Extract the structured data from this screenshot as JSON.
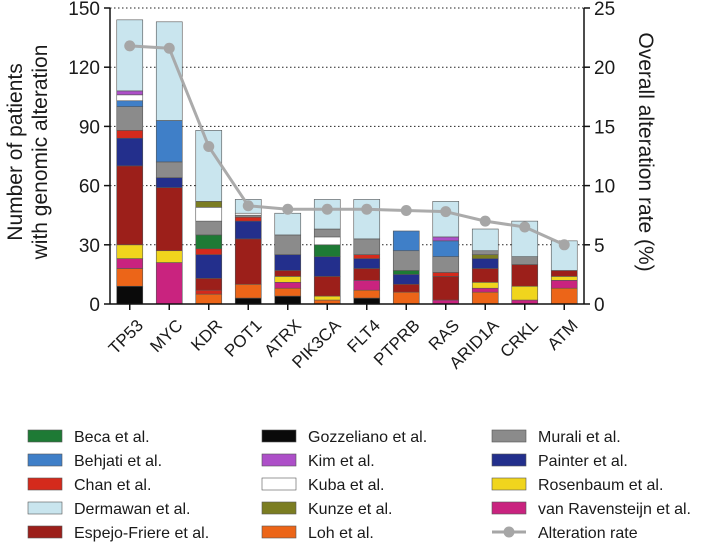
{
  "chart_data": {
    "type": "bar",
    "subtype": "stacked-bar-with-line",
    "categories": [
      "TP53",
      "MYC",
      "KDR",
      "POT1",
      "ATRX",
      "PIK3CA",
      "FLT4",
      "PTPRB",
      "RAS",
      "ARID1A",
      "CRKL",
      "ATM"
    ],
    "ylabel_left": [
      "Number of patients",
      "with genomic alteration"
    ],
    "ylabel_right": "Overall alteration rate (%)",
    "ylim_left": [
      0,
      150
    ],
    "yticks_left": [
      0,
      30,
      60,
      90,
      120,
      150
    ],
    "ylim_right": [
      0,
      25
    ],
    "yticks_right": [
      0,
      5,
      10,
      15,
      20,
      25
    ],
    "grid": "horizontal-dotted",
    "legend_position": "bottom",
    "colors": {
      "Beca et al.": "#1e7a35",
      "Behjati et al.": "#3f7fc8",
      "Chan et al.": "#d42a1c",
      "Dermawan et al.": "#c9e5ee",
      "Espejo-Friere et al.": "#9c1f1a",
      "Gozzeliano et al.": "#0a0a0a",
      "Kim et al.": "#ad4fc8",
      "Kuba et al.": "#ffffff",
      "Kunze et al.": "#7b7d22",
      "Loh et al.": "#ec6518",
      "Murali et al.": "#8b8b8b",
      "Painter et al.": "#232f8c",
      "Rosenbaum et al.": "#f0d51d",
      "van Ravensteijn et al.": "#c9237f",
      "line": "#a6a6a6"
    },
    "legend": [
      [
        "Beca et al.",
        "Behjati et al.",
        "Chan et al.",
        "Dermawan et al.",
        "Espejo-Friere et al."
      ],
      [
        "Gozzeliano et al.",
        "Kim et al.",
        "Kuba et al.",
        "Kunze et al.",
        "Loh et al."
      ],
      [
        "Murali et al.",
        "Painter et al.",
        "Rosenbaum et al.",
        "van Ravensteijn et al.",
        "Alteration rate"
      ]
    ],
    "stacks": [
      [
        [
          "Gozzeliano et al.",
          9
        ],
        [
          "Loh et al.",
          9
        ],
        [
          "van Ravensteijn et al.",
          5
        ],
        [
          "Rosenbaum et al.",
          7
        ],
        [
          "Espejo-Friere et al.",
          40
        ],
        [
          "Painter et al.",
          14
        ],
        [
          "Chan et al.",
          4
        ],
        [
          "Murali et al.",
          12
        ],
        [
          "Behjati et al.",
          3
        ],
        [
          "Kuba et al.",
          3
        ],
        [
          "Kim et al.",
          2
        ],
        [
          "Dermawan et al.",
          36
        ]
      ],
      [
        [
          "van Ravensteijn et al.",
          21
        ],
        [
          "Rosenbaum et al.",
          6
        ],
        [
          "Espejo-Friere et al.",
          32
        ],
        [
          "Painter et al.",
          5
        ],
        [
          "Murali et al.",
          8
        ],
        [
          "Behjati et al.",
          21
        ],
        [
          "Dermawan et al.",
          50
        ]
      ],
      [
        [
          "Loh et al.",
          5
        ],
        [
          "Chan et al.",
          2
        ],
        [
          "Espejo-Friere et al.",
          6
        ],
        [
          "Painter et al.",
          12
        ],
        [
          "Chan et al.",
          3
        ],
        [
          "Beca et al.",
          7
        ],
        [
          "Murali et al.",
          7
        ],
        [
          "Kuba et al.",
          7
        ],
        [
          "Kunze et al.",
          3
        ],
        [
          "Dermawan et al.",
          36
        ]
      ],
      [
        [
          "Gozzeliano et al.",
          3
        ],
        [
          "Loh et al.",
          7
        ],
        [
          "Espejo-Friere et al.",
          23
        ],
        [
          "Painter et al.",
          9
        ],
        [
          "Chan et al.",
          2
        ],
        [
          "Murali et al.",
          1
        ],
        [
          "Kuba et al.",
          1
        ],
        [
          "Dermawan et al.",
          7
        ]
      ],
      [
        [
          "Gozzeliano et al.",
          4
        ],
        [
          "Loh et al.",
          4
        ],
        [
          "van Ravensteijn et al.",
          3
        ],
        [
          "Rosenbaum et al.",
          3
        ],
        [
          "Espejo-Friere et al.",
          3
        ],
        [
          "Painter et al.",
          8
        ],
        [
          "Murali et al.",
          10
        ],
        [
          "Dermawan et al.",
          11
        ]
      ],
      [
        [
          "Loh et al.",
          2
        ],
        [
          "Rosenbaum et al.",
          2
        ],
        [
          "Espejo-Friere et al.",
          10
        ],
        [
          "Painter et al.",
          10
        ],
        [
          "Beca et al.",
          6
        ],
        [
          "Kuba et al.",
          4
        ],
        [
          "Murali et al.",
          4
        ],
        [
          "Dermawan et al.",
          15
        ]
      ],
      [
        [
          "Gozzeliano et al.",
          3
        ],
        [
          "Loh et al.",
          4
        ],
        [
          "van Ravensteijn et al.",
          5
        ],
        [
          "Espejo-Friere et al.",
          6
        ],
        [
          "Painter et al.",
          5
        ],
        [
          "Chan et al.",
          2
        ],
        [
          "Murali et al.",
          8
        ],
        [
          "Dermawan et al.",
          20
        ]
      ],
      [
        [
          "Loh et al.",
          6
        ],
        [
          "Espejo-Friere et al.",
          4
        ],
        [
          "Painter et al.",
          5
        ],
        [
          "Beca et al.",
          2
        ],
        [
          "Murali et al.",
          10
        ],
        [
          "Behjati et al.",
          10
        ]
      ],
      [
        [
          "van Ravensteijn et al.",
          2
        ],
        [
          "Espejo-Friere et al.",
          12
        ],
        [
          "Chan et al.",
          2
        ],
        [
          "Murali et al.",
          8
        ],
        [
          "Behjati et al.",
          8
        ],
        [
          "Kim et al.",
          2
        ],
        [
          "Dermawan et al.",
          18
        ]
      ],
      [
        [
          "Loh et al.",
          6
        ],
        [
          "van Ravensteijn et al.",
          2
        ],
        [
          "Rosenbaum et al.",
          3
        ],
        [
          "Espejo-Friere et al.",
          7
        ],
        [
          "Painter et al.",
          5
        ],
        [
          "Kunze et al.",
          2
        ],
        [
          "Murali et al.",
          2
        ],
        [
          "Dermawan et al.",
          11
        ]
      ],
      [
        [
          "van Ravensteijn et al.",
          2
        ],
        [
          "Rosenbaum et al.",
          7
        ],
        [
          "Espejo-Friere et al.",
          11
        ],
        [
          "Murali et al.",
          4
        ],
        [
          "Dermawan et al.",
          18
        ]
      ],
      [
        [
          "Loh et al.",
          8
        ],
        [
          "van Ravensteijn et al.",
          4
        ],
        [
          "Rosenbaum et al.",
          2
        ],
        [
          "Espejo-Friere et al.",
          3
        ],
        [
          "Dermawan et al.",
          15
        ]
      ]
    ],
    "line": {
      "name": "Alteration rate",
      "values": [
        21.8,
        21.6,
        13.3,
        8.3,
        8.0,
        8.0,
        8.0,
        7.9,
        7.8,
        7.0,
        6.5,
        5.0
      ]
    }
  }
}
